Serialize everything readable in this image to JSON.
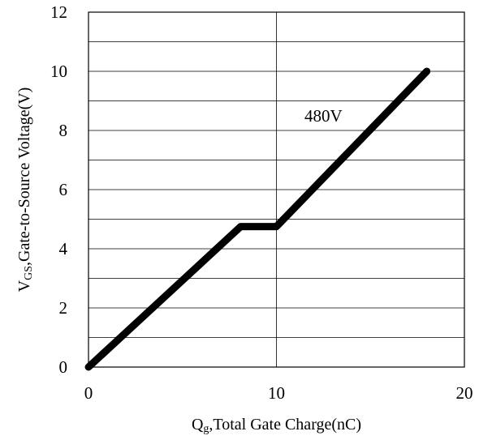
{
  "chart_data": {
    "type": "line",
    "xlabel": {
      "main": "Q",
      "sub": "g",
      "rest": ",Total Gate Charge(nC)"
    },
    "ylabel": {
      "main": "V",
      "sub": "GS",
      "rest": ",Gate-to-Source Voltage(V)"
    },
    "xlim": [
      0,
      20
    ],
    "ylim": [
      0,
      12
    ],
    "xticks": [
      0,
      10,
      20
    ],
    "xtick_labels": [
      "0",
      "10",
      "20"
    ],
    "yticks": [
      0,
      2,
      4,
      6,
      8,
      10,
      12
    ],
    "ytick_labels": [
      "0",
      "2",
      "4",
      "6",
      "8",
      "10",
      "12"
    ],
    "grid": true,
    "series": [
      {
        "name": "480V",
        "color": "#000000",
        "x": [
          0,
          8.1,
          10.0,
          18.0
        ],
        "y": [
          0,
          4.75,
          4.75,
          10.0
        ]
      }
    ],
    "annotations": [
      {
        "text": "480V",
        "x": 12.5,
        "y": 8.5
      }
    ]
  }
}
